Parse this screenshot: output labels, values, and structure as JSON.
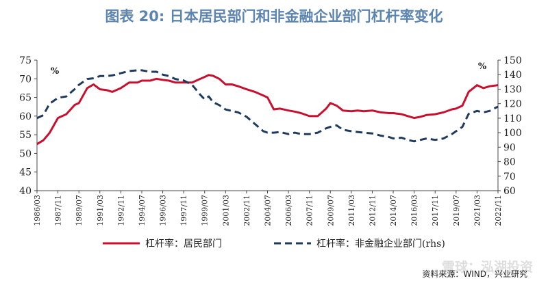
{
  "title": "图表 20: 日本居民部门和非金融企业部门杠杆率变化",
  "source": "资料来源：WIND，兴业研究",
  "watermark": "雪球：泓湖投资",
  "chart_data": {
    "type": "line",
    "left_axis": {
      "unit": "%",
      "ylim": [
        40,
        75
      ],
      "ticks": [
        40,
        45,
        50,
        55,
        60,
        65,
        70,
        75
      ]
    },
    "right_axis": {
      "unit": "%",
      "ylim": [
        60,
        150
      ],
      "ticks": [
        60,
        70,
        80,
        90,
        100,
        110,
        120,
        130,
        140,
        150
      ]
    },
    "x_tick_labels": [
      "1986/03",
      "1987/11",
      "1989/07",
      "1991/03",
      "1992/11",
      "1994/07",
      "1996/03",
      "1997/11",
      "1999/07",
      "2001/03",
      "2002/11",
      "2004/07",
      "2006/03",
      "2007/11",
      "2009/07",
      "2011/03",
      "2012/11",
      "2014/07",
      "2016/03",
      "2017/11",
      "2019/07",
      "2021/03",
      "2022/11"
    ],
    "grid": false,
    "legend_position": "bottom",
    "series": [
      {
        "name": "杠杆率：居民部门",
        "axis": "left",
        "color": "#c8102e",
        "style": "solid",
        "points": [
          [
            "1986/03",
            52.5
          ],
          [
            "1986/09",
            53.5
          ],
          [
            "1987/03",
            55.5
          ],
          [
            "1987/11",
            59.5
          ],
          [
            "1988/07",
            60.5
          ],
          [
            "1989/03",
            63
          ],
          [
            "1989/07",
            63.5
          ],
          [
            "1990/03",
            67.5
          ],
          [
            "1990/09",
            68.5
          ],
          [
            "1991/03",
            67.2
          ],
          [
            "1991/09",
            67
          ],
          [
            "1992/03",
            66.5
          ],
          [
            "1992/11",
            67.5
          ],
          [
            "1993/07",
            69
          ],
          [
            "1994/03",
            69
          ],
          [
            "1994/07",
            69.5
          ],
          [
            "1995/03",
            69.5
          ],
          [
            "1995/09",
            70
          ],
          [
            "1996/03",
            69.7
          ],
          [
            "1996/09",
            69.5
          ],
          [
            "1997/03",
            69
          ],
          [
            "1997/11",
            69
          ],
          [
            "1998/07",
            69
          ],
          [
            "1999/03",
            70
          ],
          [
            "1999/07",
            70.5
          ],
          [
            "1999/11",
            71
          ],
          [
            "2000/03",
            70.8
          ],
          [
            "2000/09",
            70
          ],
          [
            "2001/03",
            68.5
          ],
          [
            "2001/09",
            68.5
          ],
          [
            "2002/03",
            68
          ],
          [
            "2002/11",
            67.2
          ],
          [
            "2003/07",
            66.5
          ],
          [
            "2004/03",
            65.5
          ],
          [
            "2004/07",
            65
          ],
          [
            "2005/01",
            61.8
          ],
          [
            "2005/07",
            62
          ],
          [
            "2006/03",
            61.5
          ],
          [
            "2006/09",
            61.2
          ],
          [
            "2007/03",
            60.8
          ],
          [
            "2007/11",
            60
          ],
          [
            "2008/07",
            60
          ],
          [
            "2009/03",
            62
          ],
          [
            "2009/07",
            63.5
          ],
          [
            "2010/01",
            62.8
          ],
          [
            "2010/07",
            61.5
          ],
          [
            "2011/03",
            61.3
          ],
          [
            "2011/09",
            61.5
          ],
          [
            "2012/03",
            61.3
          ],
          [
            "2012/11",
            61.5
          ],
          [
            "2013/07",
            61
          ],
          [
            "2014/03",
            60.8
          ],
          [
            "2014/07",
            60.8
          ],
          [
            "2015/03",
            60.5
          ],
          [
            "2015/09",
            60
          ],
          [
            "2016/03",
            59.5
          ],
          [
            "2016/09",
            59.8
          ],
          [
            "2017/03",
            60.3
          ],
          [
            "2017/11",
            60.5
          ],
          [
            "2018/07",
            61
          ],
          [
            "2019/03",
            61.8
          ],
          [
            "2019/07",
            62
          ],
          [
            "2020/01",
            62.8
          ],
          [
            "2020/07",
            66.5
          ],
          [
            "2021/03",
            68.3
          ],
          [
            "2021/09",
            67.5
          ],
          [
            "2022/03",
            68
          ],
          [
            "2022/11",
            68.3
          ]
        ]
      },
      {
        "name": "杠杆率：非金融企业部门(rhs)",
        "axis": "right",
        "color": "#1f3a5f",
        "style": "dashed",
        "points": [
          [
            "1986/03",
            110
          ],
          [
            "1986/09",
            112
          ],
          [
            "1987/03",
            120
          ],
          [
            "1987/11",
            124
          ],
          [
            "1988/07",
            125
          ],
          [
            "1989/03",
            130
          ],
          [
            "1989/07",
            133
          ],
          [
            "1990/03",
            137
          ],
          [
            "1990/09",
            137.5
          ],
          [
            "1991/03",
            139
          ],
          [
            "1991/09",
            139
          ],
          [
            "1992/03",
            139.5
          ],
          [
            "1992/11",
            141
          ],
          [
            "1993/07",
            142.5
          ],
          [
            "1994/03",
            143
          ],
          [
            "1994/07",
            143
          ],
          [
            "1995/03",
            142
          ],
          [
            "1995/09",
            142
          ],
          [
            "1996/03",
            140
          ],
          [
            "1996/09",
            139
          ],
          [
            "1997/03",
            137
          ],
          [
            "1997/11",
            136
          ],
          [
            "1998/07",
            133
          ],
          [
            "1999/03",
            126
          ],
          [
            "1999/07",
            123
          ],
          [
            "1999/11",
            125
          ],
          [
            "2000/03",
            121
          ],
          [
            "2000/09",
            119
          ],
          [
            "2001/03",
            116
          ],
          [
            "2001/09",
            115
          ],
          [
            "2002/03",
            114
          ],
          [
            "2002/11",
            111
          ],
          [
            "2003/07",
            106
          ],
          [
            "2004/03",
            101
          ],
          [
            "2004/07",
            100
          ],
          [
            "2005/01",
            100
          ],
          [
            "2005/07",
            100.5
          ],
          [
            "2006/03",
            99
          ],
          [
            "2006/09",
            100
          ],
          [
            "2007/03",
            99
          ],
          [
            "2007/11",
            99
          ],
          [
            "2008/07",
            100
          ],
          [
            "2009/03",
            103
          ],
          [
            "2009/07",
            104
          ],
          [
            "2010/01",
            105
          ],
          [
            "2010/07",
            102
          ],
          [
            "2011/03",
            101
          ],
          [
            "2011/09",
            100.5
          ],
          [
            "2012/03",
            100
          ],
          [
            "2012/11",
            99.5
          ],
          [
            "2013/07",
            98
          ],
          [
            "2014/03",
            97
          ],
          [
            "2014/07",
            96
          ],
          [
            "2015/03",
            96.5
          ],
          [
            "2015/09",
            95
          ],
          [
            "2016/03",
            94
          ],
          [
            "2016/09",
            95
          ],
          [
            "2017/03",
            96
          ],
          [
            "2017/11",
            95
          ],
          [
            "2018/07",
            96
          ],
          [
            "2019/03",
            99
          ],
          [
            "2019/07",
            101
          ],
          [
            "2020/01",
            104
          ],
          [
            "2020/07",
            113
          ],
          [
            "2021/03",
            115
          ],
          [
            "2021/09",
            114
          ],
          [
            "2022/03",
            115
          ],
          [
            "2022/11",
            118
          ]
        ]
      }
    ]
  }
}
